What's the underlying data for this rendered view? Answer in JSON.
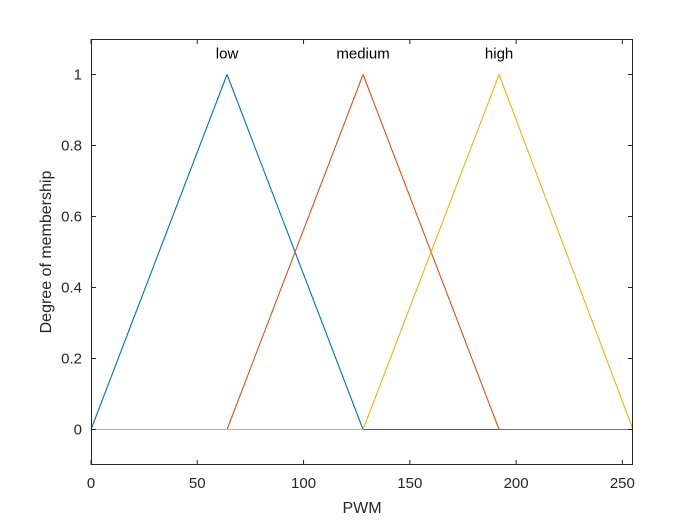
{
  "chart_data": {
    "type": "line",
    "xlabel": "PWM",
    "ylabel": "Degree of membership",
    "xlim": [
      0,
      255
    ],
    "ylim": [
      -0.1,
      1.1
    ],
    "grid": false,
    "xticks": [
      0,
      50,
      100,
      150,
      200,
      250
    ],
    "xtick_labels": [
      "0",
      "50",
      "100",
      "150",
      "200",
      "250"
    ],
    "yticks": [
      0,
      0.2,
      0.4,
      0.6,
      0.8,
      1
    ],
    "ytick_labels": [
      "0",
      "0.2",
      "0.4",
      "0.6",
      "0.8",
      "1"
    ],
    "series": [
      {
        "name": "low",
        "color": "#0072BD",
        "x": [
          0,
          64,
          128,
          255
        ],
        "y": [
          0,
          1,
          0,
          0
        ]
      },
      {
        "name": "medium",
        "color": "#D95319",
        "x": [
          0,
          64,
          128,
          192,
          255
        ],
        "y": [
          0,
          0,
          1,
          0,
          0
        ]
      },
      {
        "name": "high",
        "color": "#EDB120",
        "x": [
          0,
          128,
          192,
          255
        ],
        "y": [
          0,
          0,
          1,
          0
        ]
      }
    ],
    "annotations": [
      {
        "text": "low",
        "x": 64,
        "y": 1.045
      },
      {
        "text": "medium",
        "x": 128,
        "y": 1.045
      },
      {
        "text": "high",
        "x": 192,
        "y": 1.045
      }
    ]
  }
}
